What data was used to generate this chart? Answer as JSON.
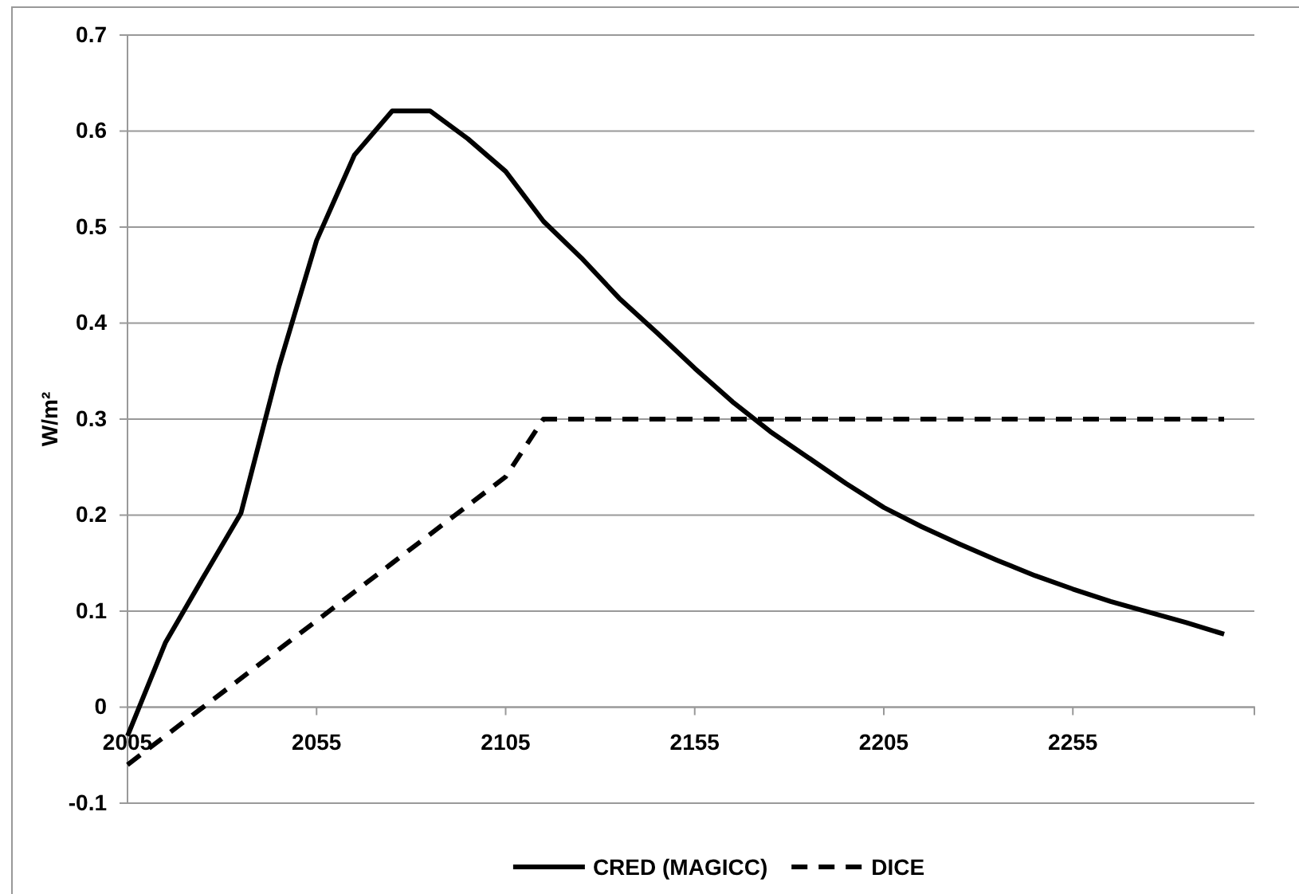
{
  "chart_data": {
    "type": "line",
    "ylabel": "W/m²",
    "x": [
      2005,
      2015,
      2025,
      2035,
      2045,
      2055,
      2065,
      2075,
      2085,
      2095,
      2105,
      2115,
      2125,
      2135,
      2145,
      2155,
      2165,
      2175,
      2185,
      2195,
      2205,
      2215,
      2225,
      2235,
      2245,
      2255,
      2265,
      2275,
      2285,
      2295
    ],
    "series": [
      {
        "name": "CRED (MAGICC)",
        "color": "#000000",
        "line_style": "solid",
        "values": [
          -0.03,
          0.067,
          0.135,
          0.202,
          0.354,
          0.486,
          0.575,
          0.621,
          0.621,
          0.592,
          0.558,
          0.506,
          0.468,
          0.426,
          0.39,
          0.353,
          0.318,
          0.287,
          0.26,
          0.233,
          0.208,
          0.188,
          0.17,
          0.153,
          0.137,
          0.123,
          0.11,
          0.099,
          0.088,
          0.076
        ]
      },
      {
        "name": "DICE",
        "color": "#000000",
        "line_style": "dashed",
        "values": [
          -0.06,
          -0.03,
          0.0,
          0.03,
          0.06,
          0.09,
          0.12,
          0.15,
          0.18,
          0.21,
          0.24,
          0.3,
          0.3,
          0.3,
          0.3,
          0.3,
          0.3,
          0.3,
          0.3,
          0.3,
          0.3,
          0.3,
          0.3,
          0.3,
          0.3,
          0.3,
          0.3,
          0.3,
          0.3,
          0.3
        ]
      }
    ],
    "xlim": [
      2005,
      2303
    ],
    "xticks": [
      2005,
      2055,
      2105,
      2155,
      2205,
      2255
    ],
    "ylim": [
      -0.1,
      0.7
    ],
    "yticks": [
      -0.1,
      0,
      0.1,
      0.2,
      0.3,
      0.4,
      0.5,
      0.6,
      0.7
    ],
    "grid": "y",
    "legend": "bottom",
    "marker": "none"
  }
}
